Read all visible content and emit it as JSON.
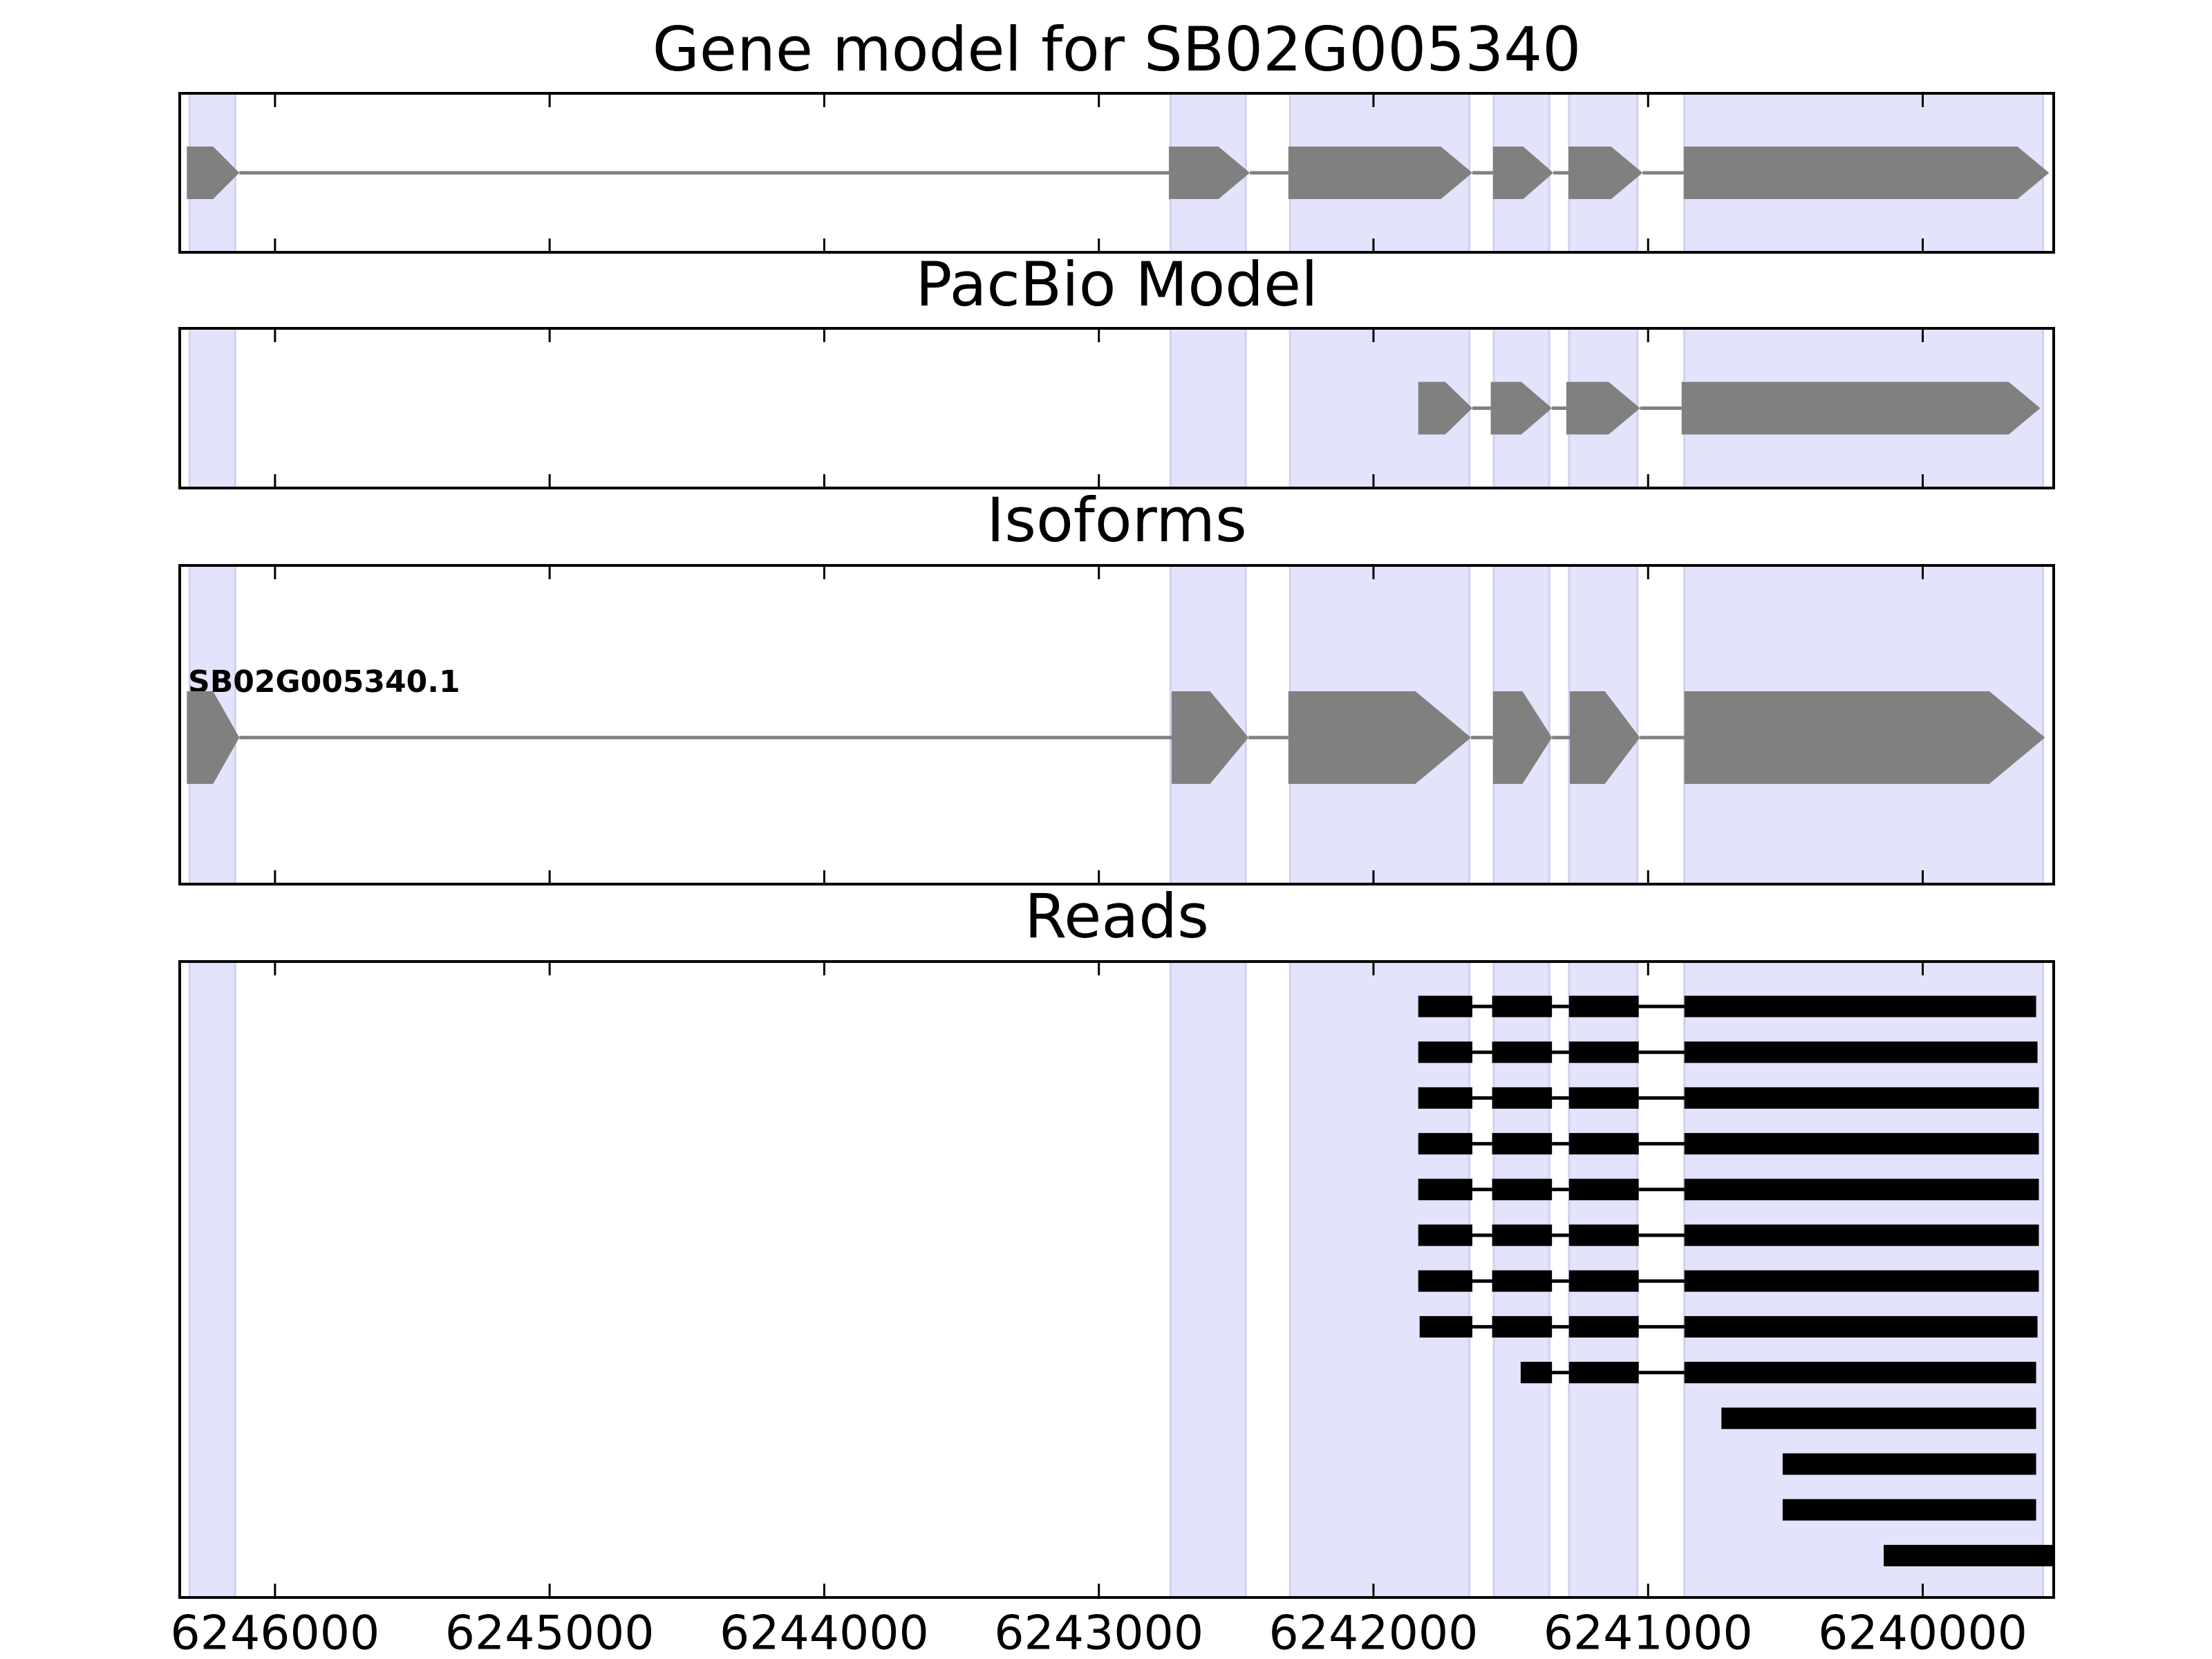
{
  "chart_data": [
    {
      "type": "gene",
      "title": "Gene model for SB02G005340",
      "color": "#808080",
      "highlight_color": "#e3e3fc",
      "xlim": [
        6246347,
        6239523
      ],
      "xticks": [
        6246000,
        6245000,
        6244000,
        6243000,
        6242000,
        6241000,
        6240000
      ],
      "highlights": [
        [
          6246311,
          6246145
        ],
        [
          6242739,
          6242465
        ],
        [
          6242304,
          6241651
        ],
        [
          6241562,
          6241360
        ],
        [
          6241288,
          6241039
        ],
        [
          6240868,
          6239562
        ]
      ],
      "exons": [
        [
          6246321,
          6246130
        ],
        [
          6242745,
          6242450
        ],
        [
          6242310,
          6241640
        ],
        [
          6241565,
          6241345
        ],
        [
          6241290,
          6241020
        ],
        [
          6240870,
          6239540
        ]
      ]
    },
    {
      "type": "gene",
      "title": "PacBio Model",
      "color": "#808080",
      "highlight_color": "#e3e3fc",
      "xlim": [
        6246347,
        6239523
      ],
      "xticks": [
        6246000,
        6245000,
        6244000,
        6243000,
        6242000,
        6241000,
        6240000
      ],
      "highlights": [
        [
          6246311,
          6246145
        ],
        [
          6242739,
          6242465
        ],
        [
          6242304,
          6241651
        ],
        [
          6241562,
          6241360
        ],
        [
          6241288,
          6241039
        ],
        [
          6240868,
          6239562
        ]
      ],
      "exons": [
        [
          6241837,
          6241640
        ],
        [
          6241573,
          6241350
        ],
        [
          6241298,
          6241029
        ],
        [
          6240878,
          6239572
        ]
      ]
    },
    {
      "type": "isoform",
      "title": "Isoforms",
      "label": "SB02G005340.1",
      "color": "#808080",
      "highlight_color": "#e3e3fc",
      "xlim": [
        6246347,
        6239523
      ],
      "xticks": [
        6246000,
        6245000,
        6244000,
        6243000,
        6242000,
        6241000,
        6240000
      ],
      "highlights": [
        [
          6246311,
          6246145
        ],
        [
          6242739,
          6242465
        ],
        [
          6242304,
          6241651
        ],
        [
          6241562,
          6241360
        ],
        [
          6241288,
          6241039
        ],
        [
          6240868,
          6239562
        ]
      ],
      "exons": [
        [
          6246321,
          6246130
        ],
        [
          6242735,
          6242455
        ],
        [
          6242310,
          6241645
        ],
        [
          6241565,
          6241350
        ],
        [
          6241285,
          6241030
        ],
        [
          6240868,
          6239555
        ]
      ]
    },
    {
      "type": "reads",
      "title": "Reads",
      "color": "#000000",
      "highlight_color": "#e3e3fc",
      "xlim": [
        6246347,
        6239523
      ],
      "xticks": [
        6246000,
        6245000,
        6244000,
        6243000,
        6242000,
        6241000,
        6240000
      ],
      "highlights": [
        [
          6246311,
          6246145
        ],
        [
          6242739,
          6242465
        ],
        [
          6242304,
          6241651
        ],
        [
          6241562,
          6241360
        ],
        [
          6241288,
          6241039
        ],
        [
          6240868,
          6239562
        ]
      ],
      "reads": [
        [
          [
            6241837,
            6241640
          ],
          [
            6241568,
            6241350
          ],
          [
            6241288,
            6241034
          ],
          [
            6240868,
            6239587
          ]
        ],
        [
          [
            6241837,
            6241640
          ],
          [
            6241568,
            6241350
          ],
          [
            6241288,
            6241034
          ],
          [
            6240868,
            6239582
          ]
        ],
        [
          [
            6241837,
            6241640
          ],
          [
            6241568,
            6241350
          ],
          [
            6241288,
            6241034
          ],
          [
            6240868,
            6239577
          ]
        ],
        [
          [
            6241837,
            6241640
          ],
          [
            6241568,
            6241350
          ],
          [
            6241288,
            6241034
          ],
          [
            6240868,
            6239577
          ]
        ],
        [
          [
            6241837,
            6241640
          ],
          [
            6241568,
            6241350
          ],
          [
            6241288,
            6241034
          ],
          [
            6240868,
            6239577
          ]
        ],
        [
          [
            6241837,
            6241640
          ],
          [
            6241568,
            6241350
          ],
          [
            6241288,
            6241034
          ],
          [
            6240868,
            6239577
          ]
        ],
        [
          [
            6241837,
            6241640
          ],
          [
            6241568,
            6241350
          ],
          [
            6241288,
            6241034
          ],
          [
            6240868,
            6239577
          ]
        ],
        [
          [
            6241832,
            6241640
          ],
          [
            6241568,
            6241350
          ],
          [
            6241288,
            6241034
          ],
          [
            6240868,
            6239582
          ]
        ],
        [
          [
            6241464,
            6241350
          ],
          [
            6241288,
            6241034
          ],
          [
            6240868,
            6239587
          ]
        ],
        [
          [
            6240733,
            6239587
          ]
        ],
        [
          [
            6240510,
            6239587
          ]
        ],
        [
          [
            6240510,
            6239587
          ]
        ],
        [
          [
            6240142,
            6239523
          ]
        ]
      ]
    }
  ]
}
